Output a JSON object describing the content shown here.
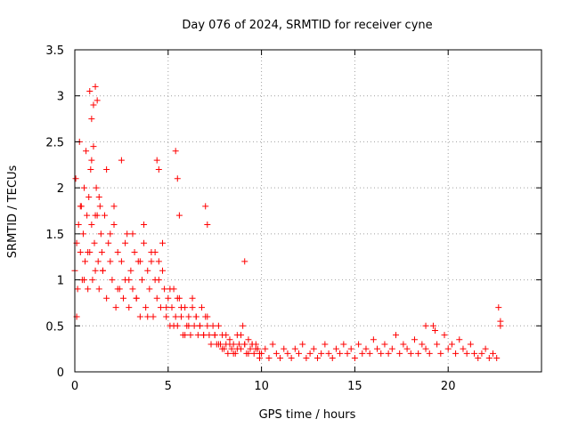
{
  "chart_data": {
    "type": "scatter",
    "title": "Day 076 of 2024, SRMTID for receiver cyne",
    "xlabel": "GPS time / hours",
    "ylabel": "SRMTID / TECUs",
    "xlim": [
      0,
      25
    ],
    "ylim": [
      0,
      3.5
    ],
    "xticks": [
      "0",
      "5",
      "10",
      "15",
      "20"
    ],
    "yticks": [
      "0",
      "0.5",
      "1",
      "1.5",
      "2",
      "2.5",
      "3",
      "3.5"
    ],
    "grid": true,
    "marker": "+",
    "color": "#ff0000",
    "series": [
      {
        "name": "SRMTID",
        "x": [
          0.0,
          0.05,
          0.1,
          0.15,
          0.2,
          0.25,
          0.3,
          0.35,
          0.4,
          0.45,
          0.5,
          0.55,
          0.6,
          0.65,
          0.7,
          0.75,
          0.8,
          0.85,
          0.9,
          0.95,
          1.0,
          1.05,
          1.1,
          1.15,
          1.2,
          1.25,
          1.3,
          1.35,
          1.4,
          1.45,
          1.5,
          1.6,
          1.7,
          1.8,
          1.9,
          2.0,
          2.1,
          2.2,
          2.3,
          2.4,
          2.5,
          2.6,
          2.7,
          2.8,
          2.9,
          3.0,
          3.1,
          3.2,
          3.3,
          3.4,
          3.5,
          3.6,
          3.7,
          3.8,
          3.9,
          4.0,
          4.1,
          4.2,
          4.3,
          4.4,
          4.5,
          4.6,
          4.7,
          4.8,
          4.9,
          5.0,
          5.1,
          5.2,
          5.3,
          5.4,
          5.5,
          5.6,
          5.7,
          5.8,
          5.9,
          6.0,
          6.1,
          6.2,
          6.3,
          6.4,
          6.5,
          6.6,
          6.7,
          6.8,
          6.9,
          7.0,
          7.1,
          7.2,
          7.3,
          7.4,
          7.5,
          7.6,
          7.7,
          7.8,
          7.9,
          8.0,
          8.1,
          8.2,
          8.3,
          8.4,
          8.5,
          8.6,
          8.7,
          8.8,
          8.9,
          9.0,
          9.1,
          9.2,
          9.3,
          9.4,
          9.5,
          9.6,
          9.7,
          9.8,
          9.9,
          10.0,
          10.2,
          10.4,
          10.6,
          10.8,
          11.0,
          11.2,
          11.4,
          11.6,
          11.8,
          12.0,
          12.2,
          12.4,
          12.6,
          12.8,
          13.0,
          13.2,
          13.4,
          13.6,
          13.8,
          14.0,
          14.2,
          14.4,
          14.6,
          14.8,
          15.0,
          15.2,
          15.4,
          15.6,
          15.8,
          16.0,
          16.2,
          16.4,
          16.6,
          16.8,
          17.0,
          17.2,
          17.4,
          17.6,
          17.8,
          18.0,
          18.2,
          18.4,
          18.6,
          18.8,
          19.0,
          19.2,
          19.4,
          19.6,
          19.8,
          20.0,
          20.2,
          20.4,
          20.6,
          20.8,
          21.0,
          21.2,
          21.4,
          21.6,
          21.8,
          22.0,
          22.2,
          22.4,
          22.6,
          22.8,
          0.1,
          0.3,
          0.5,
          0.7,
          0.9,
          1.1,
          1.3,
          1.5,
          1.7,
          1.9,
          2.1,
          2.3,
          2.5,
          2.7,
          2.9,
          3.1,
          3.3,
          3.5,
          3.7,
          3.9,
          4.1,
          4.3,
          4.5,
          4.7,
          4.9,
          5.1,
          5.3,
          5.5,
          5.7,
          5.9,
          6.1,
          6.3,
          6.5,
          6.7,
          6.9,
          7.1,
          7.3,
          7.5,
          7.7,
          7.9,
          8.1,
          8.3,
          8.5,
          8.7,
          8.9,
          9.1,
          9.3,
          9.5,
          9.7,
          9.9,
          0.8,
          0.9,
          1.0,
          1.1,
          1.2,
          5.4,
          5.5,
          5.6,
          7.0,
          7.1,
          4.4,
          4.5,
          9.1,
          18.8,
          19.3,
          22.7,
          22.8
        ],
        "y": [
          1.1,
          2.1,
          1.4,
          0.9,
          1.6,
          2.5,
          1.3,
          1.8,
          1.0,
          1.5,
          2.0,
          1.2,
          2.4,
          1.7,
          0.9,
          1.9,
          1.3,
          2.2,
          1.6,
          1.0,
          2.9,
          1.4,
          1.1,
          2.0,
          1.7,
          1.2,
          0.9,
          1.8,
          1.5,
          1.3,
          1.1,
          1.7,
          0.8,
          1.4,
          1.2,
          1.0,
          1.6,
          0.7,
          1.3,
          0.9,
          1.2,
          0.8,
          1.0,
          1.5,
          0.7,
          1.1,
          0.9,
          1.3,
          0.8,
          1.2,
          0.6,
          1.0,
          1.4,
          0.7,
          1.1,
          0.9,
          1.2,
          0.6,
          1.3,
          0.8,
          1.0,
          0.7,
          1.1,
          0.9,
          0.6,
          0.8,
          0.5,
          0.7,
          0.9,
          0.6,
          0.5,
          0.8,
          0.6,
          0.4,
          0.7,
          0.5,
          0.6,
          0.4,
          0.7,
          0.5,
          0.6,
          0.4,
          0.5,
          0.7,
          0.4,
          0.6,
          0.5,
          0.4,
          0.3,
          0.5,
          0.4,
          0.3,
          0.5,
          0.3,
          0.4,
          0.25,
          0.3,
          0.2,
          0.35,
          0.25,
          0.3,
          0.2,
          0.4,
          0.3,
          0.25,
          0.5,
          0.3,
          0.2,
          0.35,
          0.25,
          0.3,
          0.2,
          0.3,
          0.25,
          0.15,
          0.2,
          0.25,
          0.15,
          0.3,
          0.2,
          0.15,
          0.25,
          0.2,
          0.15,
          0.25,
          0.2,
          0.3,
          0.15,
          0.2,
          0.25,
          0.15,
          0.2,
          0.3,
          0.2,
          0.15,
          0.25,
          0.2,
          0.3,
          0.2,
          0.25,
          0.15,
          0.3,
          0.2,
          0.25,
          0.2,
          0.35,
          0.25,
          0.2,
          0.3,
          0.2,
          0.25,
          0.4,
          0.2,
          0.3,
          0.25,
          0.2,
          0.35,
          0.2,
          0.3,
          0.25,
          0.2,
          0.5,
          0.3,
          0.2,
          0.4,
          0.25,
          0.3,
          0.2,
          0.35,
          0.25,
          0.2,
          0.3,
          0.2,
          0.15,
          0.2,
          0.25,
          0.15,
          0.2,
          0.15,
          0.5,
          0.6,
          1.8,
          1.0,
          1.3,
          2.3,
          1.7,
          1.9,
          1.1,
          2.2,
          1.5,
          1.8,
          0.9,
          2.3,
          1.4,
          1.0,
          1.5,
          0.8,
          1.2,
          1.6,
          0.6,
          1.3,
          1.0,
          1.2,
          1.4,
          0.7,
          0.9,
          0.5,
          0.8,
          0.7,
          0.4,
          0.5,
          0.8,
          0.6,
          0.5,
          0.4,
          0.6,
          0.3,
          0.4,
          0.3,
          0.25,
          0.4,
          0.3,
          0.2,
          0.25,
          0.4,
          0.3,
          0.2,
          0.3,
          0.25,
          0.2,
          3.05,
          2.75,
          2.45,
          3.1,
          2.95,
          2.4,
          2.1,
          1.7,
          1.8,
          1.6,
          2.3,
          2.2,
          1.2,
          0.5,
          0.45,
          0.7,
          0.55
        ]
      }
    ]
  }
}
